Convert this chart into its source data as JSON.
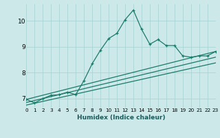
{
  "xlabel": "Humidex (Indice chaleur)",
  "background_color": "#cde8e8",
  "grid_color": "#aad4d4",
  "line_color": "#1a7a6a",
  "xlim": [
    0,
    23
  ],
  "ylim": [
    6.65,
    10.65
  ],
  "ytick_values": [
    7,
    8,
    9,
    10
  ],
  "line1_x": [
    0,
    1,
    2,
    3,
    4,
    5,
    6,
    7,
    8,
    9,
    10,
    11,
    12,
    13,
    14,
    15,
    16,
    17,
    18,
    19,
    20,
    21,
    22,
    23
  ],
  "line1_y": [
    6.97,
    6.83,
    7.0,
    7.13,
    7.15,
    7.25,
    7.15,
    7.7,
    8.35,
    8.87,
    9.32,
    9.52,
    10.05,
    10.42,
    9.68,
    9.1,
    9.28,
    9.05,
    9.05,
    8.65,
    8.6,
    8.65,
    8.65,
    8.82
  ],
  "line2_x": [
    0,
    23
  ],
  "line2_y": [
    6.97,
    8.82
  ],
  "line3_x": [
    0,
    23
  ],
  "line3_y": [
    6.85,
    8.6
  ],
  "line4_x": [
    0,
    23
  ],
  "line4_y": [
    6.75,
    8.38
  ]
}
